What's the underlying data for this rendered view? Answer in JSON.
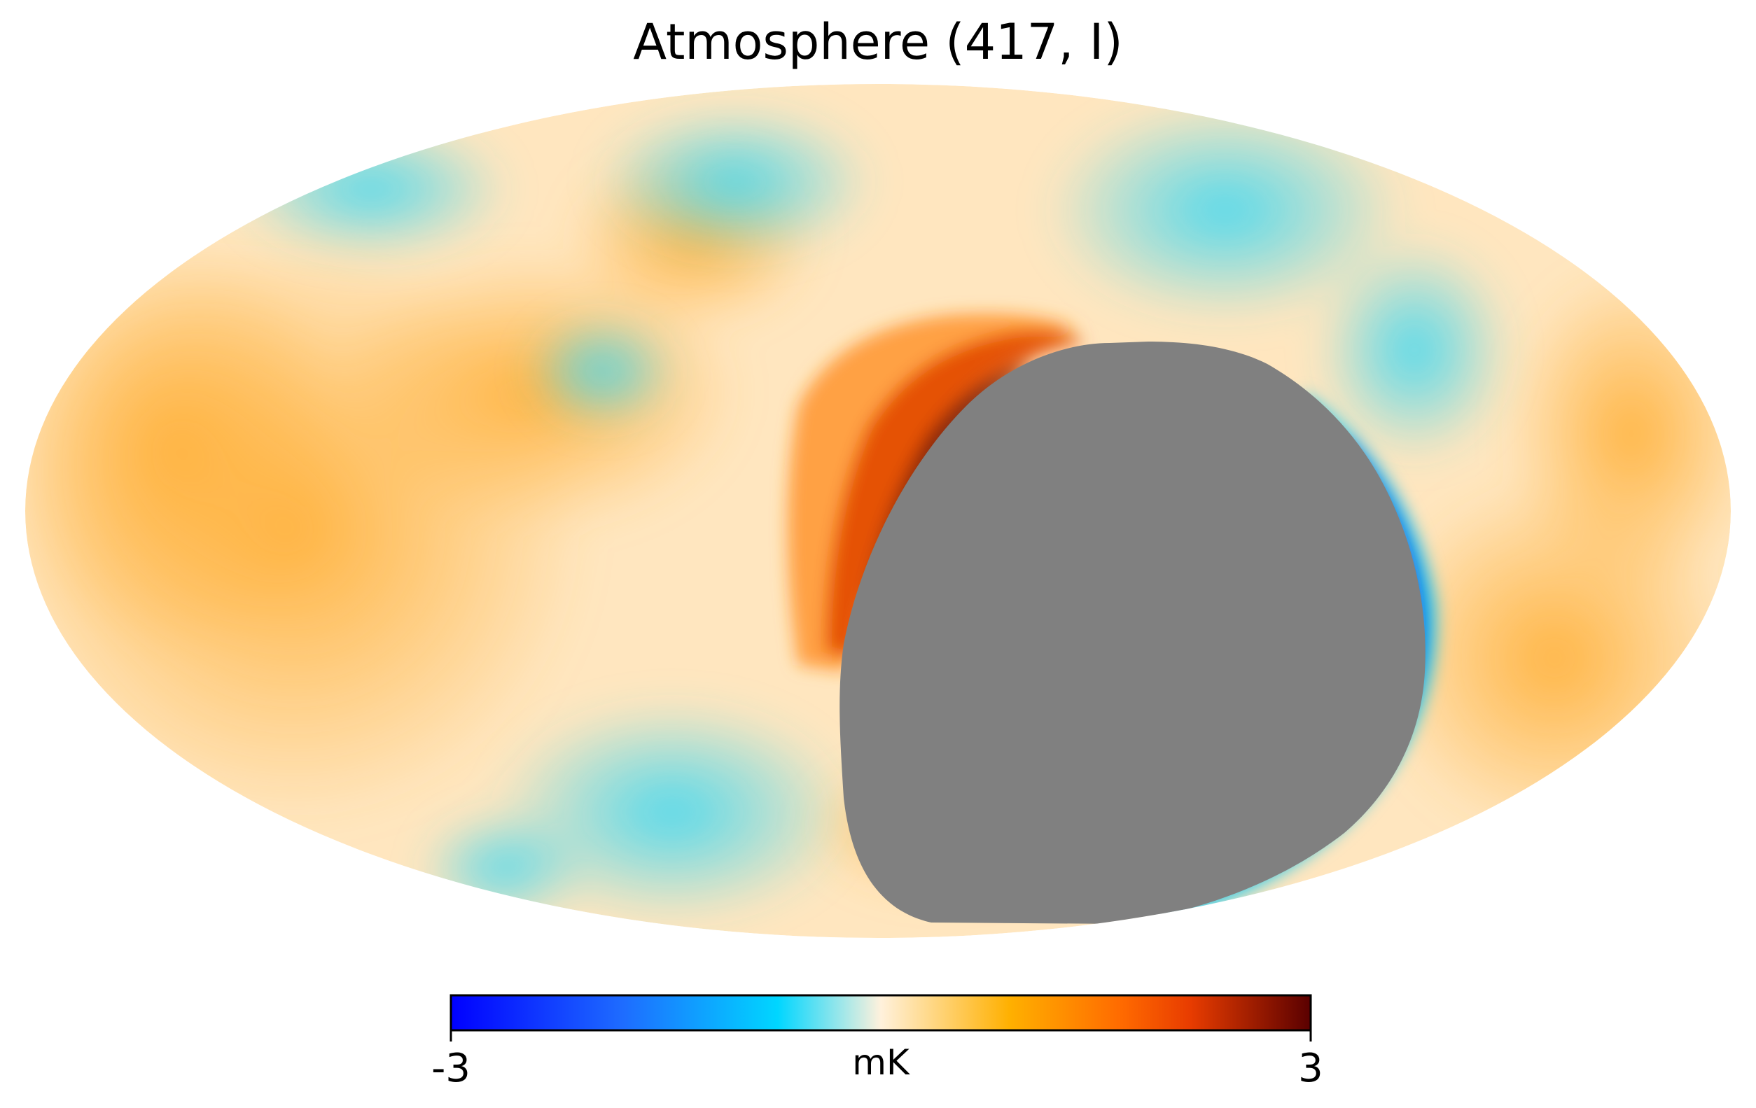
{
  "title": "Atmosphere (417, I)",
  "colorbar": {
    "min_label": "-3",
    "max_label": "3",
    "unit": "mK",
    "range": [
      -3,
      3
    ],
    "colors": [
      "#0000ff",
      "#1e6cff",
      "#00d6ff",
      "#fff1dc",
      "#ffb000",
      "#ff6a00",
      "#e83c00",
      "#5a0000"
    ]
  },
  "map": {
    "projection": "mollweide",
    "colors": {
      "background": "#ffe8c4",
      "warm": "#ffb64a",
      "hot": "#e24a00",
      "cold": "#3ed7f2",
      "deep_cold": "#0a5af0",
      "masked": "#808080"
    }
  }
}
